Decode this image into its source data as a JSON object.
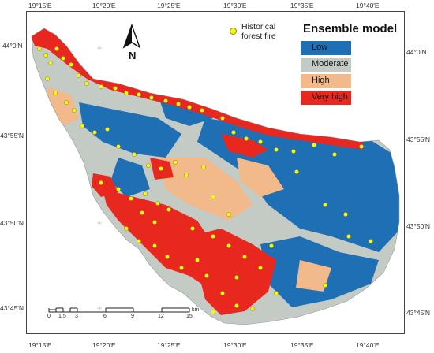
{
  "legend": {
    "title": "Ensemble model",
    "classes": [
      {
        "label": "Low",
        "color": "#1f6fb5"
      },
      {
        "label": "Moderate",
        "color": "#c3cbc4"
      },
      {
        "label": "High",
        "color": "#f2b98a"
      },
      {
        "label": "Very high",
        "color": "#e8271f"
      }
    ],
    "fire_label_line1": "Historical",
    "fire_label_line2": "forest fire",
    "fire_color": "#f5f520"
  },
  "north_label": "N",
  "axes": {
    "top": [
      "19°15'E",
      "19°20'E",
      "19°25'E",
      "19°30'E",
      "19°35'E",
      "19°40'E"
    ],
    "bottom": [
      "19°15'E",
      "19°20'E",
      "19°25'E",
      "19°30'E",
      "19°35'E",
      "19°40'E"
    ],
    "left": [
      "44°0'N",
      "43°55'N",
      "43°50'N",
      "43°45'N"
    ],
    "right": [
      "44°0'N",
      "43°55'N",
      "43°50'N",
      "43°45'N"
    ]
  },
  "scale_bar": {
    "labels": [
      "0",
      "1.5",
      "3",
      "6",
      "9",
      "12",
      "15"
    ],
    "unit": "km"
  }
}
